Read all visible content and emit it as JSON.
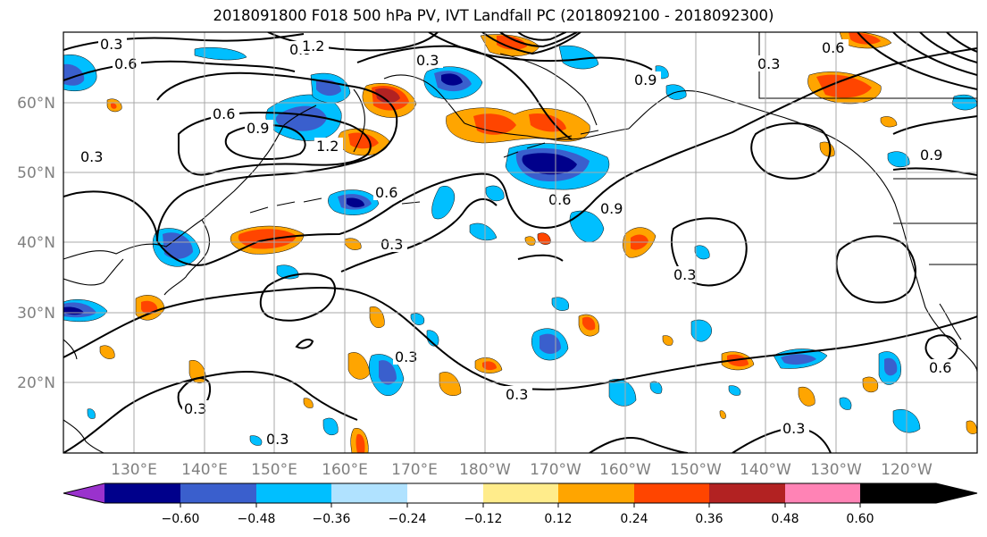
{
  "title": "2018091800 F018 500 hPa PV, IVT Landfall PC (2018092100 - 2018092300)",
  "lat_labels": [
    "60°N",
    "50°N",
    "40°N",
    "30°N",
    "20°N"
  ],
  "lon_labels": [
    "130°E",
    "140°E",
    "150°E",
    "160°E",
    "170°E",
    "180°W",
    "170°W",
    "160°W",
    "150°W",
    "140°W",
    "130°W",
    "120°W"
  ],
  "colorbar": {
    "colors": [
      "#9a32cd",
      "#00008b",
      "#3a5fcd",
      "#00bfff",
      "#b0e2ff",
      "#ffffff",
      "#ffec8b",
      "#ffa500",
      "#ff4500",
      "#b22222",
      "#ff83b5"
    ],
    "tick_labels": [
      "−0.60",
      "−0.48",
      "−0.36",
      "−0.24",
      "−0.12",
      "0.12",
      "0.24",
      "0.36",
      "0.48",
      "0.60"
    ]
  },
  "contour_labels": [
    "0.3",
    "0.6",
    "0.9",
    "1.2",
    "0.6",
    "0.9",
    "1.2",
    "0.3",
    "0.6",
    "0.3",
    "0.3",
    "0.6",
    "0.9",
    "0.3",
    "0.9",
    "0.6",
    "0.3",
    "0.3",
    "0.3",
    "0.3",
    "0.6",
    "0.9",
    "0.3",
    "0.3"
  ]
}
